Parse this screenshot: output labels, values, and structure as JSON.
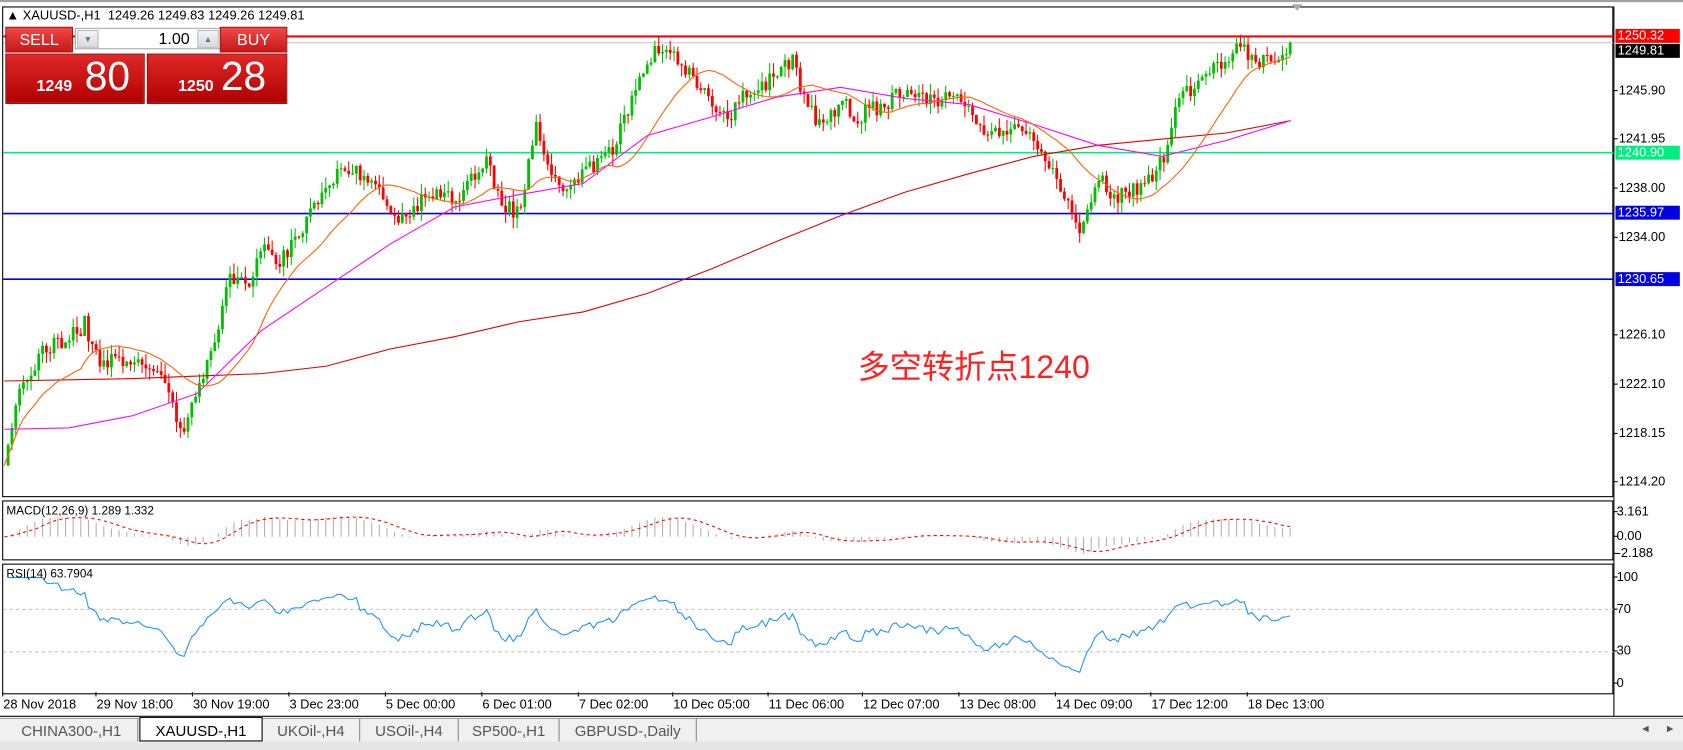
{
  "header": {
    "symbol": "XAUUSD-,H1",
    "ohlc": "1249.26 1249.83 1249.26 1249.81"
  },
  "trade_panel": {
    "sell_label": "SELL",
    "buy_label": "BUY",
    "lot": "1.00",
    "sell_small": "1249",
    "sell_big": "80",
    "buy_small": "1250",
    "buy_big": "28"
  },
  "price_axis": {
    "ticks": [
      "1245.90",
      "1241.95",
      "1238.00",
      "1234.00",
      "1226.10",
      "1222.10",
      "1218.15",
      "1214.20"
    ],
    "tick_values": [
      1245.9,
      1241.95,
      1238.0,
      1234.0,
      1226.1,
      1222.1,
      1218.15,
      1214.2
    ]
  },
  "hlines": [
    {
      "label": "1250.32",
      "value": 1250.32,
      "color": "#ff0000"
    },
    {
      "label": "1249.81",
      "value": 1249.81,
      "color": "#000000"
    },
    {
      "label": "1240.90",
      "value": 1240.9,
      "color": "#00ee80"
    },
    {
      "label": "1235.97",
      "value": 1235.97,
      "color": "#0000e0"
    },
    {
      "label": "1230.65",
      "value": 1230.65,
      "color": "#0000e0"
    }
  ],
  "annotation": "多空转折点1240",
  "macd": {
    "label": "MACD(12,26,9) 1.289 1.332",
    "ticks": [
      "3.161",
      "0.00",
      "-2.188"
    ],
    "tick_values": [
      3.161,
      0,
      -2.188
    ]
  },
  "rsi": {
    "label": "RSI(14) 63.7904",
    "ticks": [
      "100",
      "70",
      "30",
      "0"
    ],
    "tick_values": [
      100,
      70,
      30,
      0
    ]
  },
  "dates": [
    "28 Nov 2018",
    "29 Nov 18:00",
    "30 Nov 19:00",
    "3 Dec 23:00",
    "5 Dec 00:00",
    "6 Dec 01:00",
    "7 Dec 02:00",
    "10 Dec 05:00",
    "11 Dec 06:00",
    "12 Dec 07:00",
    "13 Dec 08:00",
    "14 Dec 09:00",
    "17 Dec 12:00",
    "18 Dec 13:00"
  ],
  "tabs": [
    {
      "label": "CHINA300-,H1"
    },
    {
      "label": "XAUUSD-,H1",
      "active": true
    },
    {
      "label": "UKOil-,H4"
    },
    {
      "label": "USOil-,H4"
    },
    {
      "label": "SP500-,H1"
    },
    {
      "label": "GBPUSD-,Daily"
    }
  ],
  "colors": {
    "bull": "#00c000",
    "bear": "#ff0000",
    "ma_fast": "#ff6000",
    "ma_mid": "#ff00ff",
    "ma_slow": "#e00000",
    "macd_hist": "#b0b0b0",
    "macd_signal": "#ff0000",
    "rsi": "#1e90ff"
  },
  "chart_data": {
    "type": "candlestick",
    "symbol": "XAUUSD-,H1",
    "ylim": [
      1214.2,
      1250.32
    ],
    "x_ticks": [
      "28 Nov 2018",
      "29 Nov 18:00",
      "30 Nov 19:00",
      "3 Dec 23:00",
      "5 Dec 00:00",
      "6 Dec 01:00",
      "7 Dec 02:00",
      "10 Dec 05:00",
      "11 Dec 06:00",
      "12 Dec 07:00",
      "13 Dec 08:00",
      "14 Dec 09:00",
      "17 Dec 12:00",
      "18 Dec 13:00"
    ],
    "close_approx_every_4h": [
      1215,
      1222.5,
      1224,
      1225.5,
      1225.8,
      1227,
      1223.7,
      1224.2,
      1224.3,
      1223.5,
      1222,
      1218.5,
      1221,
      1225,
      1230.5,
      1230,
      1233,
      1232,
      1233.5,
      1236,
      1238.2,
      1240,
      1239.4,
      1238.6,
      1236,
      1235.8,
      1237,
      1237.5,
      1237.2,
      1238.7,
      1240,
      1236.5,
      1236,
      1243,
      1239.4,
      1238,
      1239.4,
      1240,
      1241.5,
      1245.4,
      1248.5,
      1249.3,
      1248,
      1246.5,
      1244.8,
      1243.5,
      1245.5,
      1246.5,
      1246.8,
      1248.5,
      1244.5,
      1243,
      1245,
      1243.8,
      1244.5,
      1245,
      1246.2,
      1245.5,
      1245.3,
      1245.5,
      1244,
      1242.6,
      1243,
      1242.6,
      1242.5,
      1239.5,
      1237.6,
      1234.1,
      1239,
      1237.5,
      1237.6,
      1238.3,
      1240.2,
      1245.5,
      1245.7,
      1247.5,
      1248.5,
      1249.7,
      1248,
      1248.8,
      1249.8
    ],
    "ma_slow_approx_every_16h": [
      1222.4,
      1222.5,
      1222.6,
      1222.8,
      1223.0,
      1223.6,
      1225.0,
      1226.0,
      1227.2,
      1228.0,
      1229.5,
      1231.5,
      1233.7,
      1235.8,
      1237.7,
      1239.2,
      1240.6,
      1241.5,
      1242.0,
      1242.5,
      1243.5
    ],
    "ma_mid_approx_every_16h": [
      1218.5,
      1218.6,
      1219.6,
      1221.4,
      1226.5,
      1230.0,
      1233.5,
      1236.5,
      1237.5,
      1238.4,
      1242.3,
      1243.8,
      1245.4,
      1246.2,
      1245.3,
      1244.8,
      1243.2,
      1241.5,
      1240.6,
      1241.9,
      1243.5
    ],
    "last": {
      "open": 1249.26,
      "high": 1249.83,
      "low": 1249.26,
      "close": 1249.81
    },
    "macd": {
      "params": [
        12,
        26,
        9
      ],
      "main": 1.289,
      "signal": 1.332,
      "ylim": [
        -2.188,
        3.161
      ]
    },
    "rsi": {
      "period": 14,
      "value": 63.7904,
      "levels": [
        30,
        70
      ],
      "ylim": [
        0,
        100
      ]
    }
  }
}
